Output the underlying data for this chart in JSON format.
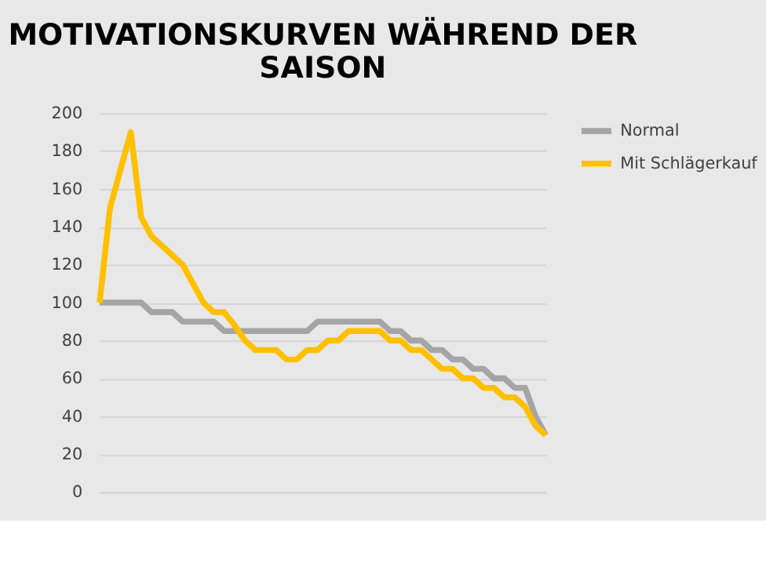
{
  "chart_data": {
    "type": "line",
    "title": [
      "MOTIVATIONSKURVEN WÄHREND DER",
      "SAISON"
    ],
    "categories": [
      null,
      null,
      null,
      null,
      null,
      null,
      null,
      null,
      null,
      null,
      null,
      null,
      null,
      null,
      null,
      null,
      null,
      null,
      null,
      null,
      null,
      null,
      null,
      null,
      null,
      null,
      null,
      null,
      null,
      null,
      null,
      null,
      null,
      null,
      null,
      null,
      null,
      null,
      null,
      null,
      null,
      null,
      null,
      null
    ],
    "series": [
      {
        "name": "Normal",
        "color": "#a5a5a5",
        "values": [
          100,
          100,
          100,
          100,
          100,
          95,
          95,
          95,
          90,
          90,
          90,
          90,
          85,
          85,
          85,
          85,
          85,
          85,
          85,
          85,
          85,
          90,
          90,
          90,
          90,
          90,
          90,
          90,
          85,
          85,
          80,
          80,
          75,
          75,
          70,
          70,
          65,
          65,
          60,
          60,
          55,
          55,
          40,
          30
        ]
      },
      {
        "name": "Mit Schlägerkauf",
        "color": "#ffc000",
        "values": [
          100,
          150,
          170,
          190,
          145,
          135,
          130,
          125,
          120,
          110,
          100,
          95,
          95,
          88,
          80,
          75,
          75,
          75,
          70,
          70,
          75,
          75,
          80,
          80,
          85,
          85,
          85,
          85,
          80,
          80,
          75,
          75,
          70,
          65,
          65,
          60,
          60,
          55,
          55,
          50,
          50,
          45,
          35,
          30
        ]
      }
    ],
    "ylim": [
      0,
      200
    ],
    "yticks": [
      0,
      20,
      40,
      60,
      80,
      100,
      120,
      140,
      160,
      180,
      200
    ],
    "grid": "y",
    "legend": "right",
    "tick_labels": "y",
    "marker": "none",
    "line_style": "solid"
  }
}
